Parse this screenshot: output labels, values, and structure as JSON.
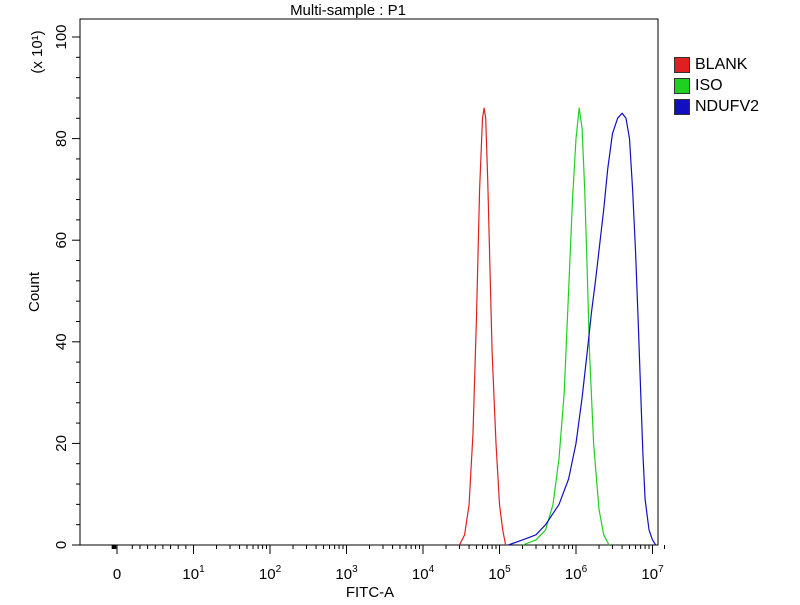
{
  "chart_data": {
    "type": "line",
    "title": "Multi-sample : P1",
    "xlabel": "FITC-A",
    "ylabel": "Count",
    "y_multiplier": "(x 10¹)",
    "x_scale": "biexponential (log decades)",
    "xlim": [
      -100,
      15000000
    ],
    "ylim": [
      0,
      105
    ],
    "x_ticks": [
      {
        "value": 0,
        "base": "0",
        "exp": ""
      },
      {
        "value": 10,
        "base": "10",
        "exp": "1"
      },
      {
        "value": 100,
        "base": "10",
        "exp": "2"
      },
      {
        "value": 1000,
        "base": "10",
        "exp": "3"
      },
      {
        "value": 10000,
        "base": "10",
        "exp": "4"
      },
      {
        "value": 100000,
        "base": "10",
        "exp": "5"
      },
      {
        "value": 1000000,
        "base": "10",
        "exp": "6"
      },
      {
        "value": 10000000,
        "base": "10",
        "exp": "7"
      }
    ],
    "y_ticks": [
      0,
      20,
      40,
      60,
      80,
      100
    ],
    "legend_position": "right",
    "grid": false,
    "series": [
      {
        "name": "BLANK",
        "color": "#e02020",
        "points": [
          [
            30000,
            0
          ],
          [
            35000,
            2
          ],
          [
            40000,
            8
          ],
          [
            45000,
            22
          ],
          [
            50000,
            45
          ],
          [
            55000,
            70
          ],
          [
            60000,
            84
          ],
          [
            63000,
            86
          ],
          [
            66000,
            84
          ],
          [
            70000,
            72
          ],
          [
            75000,
            55
          ],
          [
            80000,
            38
          ],
          [
            90000,
            20
          ],
          [
            100000,
            8
          ],
          [
            110000,
            3
          ],
          [
            120000,
            0
          ]
        ]
      },
      {
        "name": "ISO",
        "color": "#20d020",
        "points": [
          [
            200000,
            0
          ],
          [
            300000,
            1
          ],
          [
            400000,
            3
          ],
          [
            500000,
            8
          ],
          [
            600000,
            17
          ],
          [
            700000,
            30
          ],
          [
            800000,
            50
          ],
          [
            900000,
            68
          ],
          [
            1000000,
            80
          ],
          [
            1100000,
            86
          ],
          [
            1200000,
            82
          ],
          [
            1300000,
            70
          ],
          [
            1400000,
            54
          ],
          [
            1500000,
            38
          ],
          [
            1700000,
            20
          ],
          [
            2000000,
            7
          ],
          [
            2300000,
            2
          ],
          [
            2700000,
            0
          ]
        ]
      },
      {
        "name": "NDUFV2",
        "color": "#1010c0",
        "points": [
          [
            130000,
            0
          ],
          [
            200000,
            1
          ],
          [
            300000,
            2
          ],
          [
            400000,
            4
          ],
          [
            600000,
            8
          ],
          [
            800000,
            13
          ],
          [
            1000000,
            20
          ],
          [
            1200000,
            29
          ],
          [
            1400000,
            38
          ],
          [
            1600000,
            46
          ],
          [
            1800000,
            52
          ],
          [
            2000000,
            58
          ],
          [
            2300000,
            66
          ],
          [
            2600000,
            74
          ],
          [
            3000000,
            81
          ],
          [
            3500000,
            84
          ],
          [
            4000000,
            85
          ],
          [
            4500000,
            84
          ],
          [
            5000000,
            80
          ],
          [
            5500000,
            70
          ],
          [
            6000000,
            58
          ],
          [
            6500000,
            44
          ],
          [
            7000000,
            30
          ],
          [
            7500000,
            18
          ],
          [
            8000000,
            9
          ],
          [
            9000000,
            3
          ],
          [
            10000000,
            1
          ],
          [
            11000000,
            0
          ]
        ]
      }
    ]
  }
}
